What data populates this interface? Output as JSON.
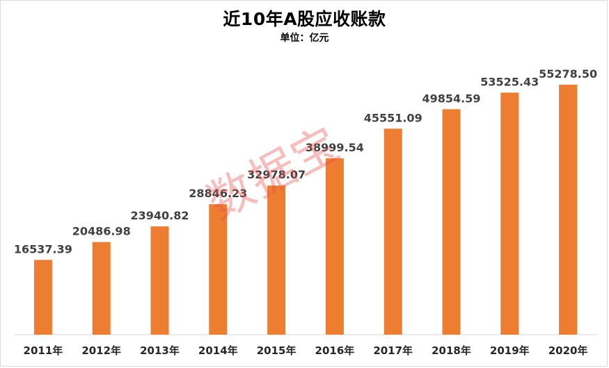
{
  "chart_data": {
    "type": "bar",
    "title": "近10年A股应收账款",
    "subtitle": "单位：亿元",
    "categories": [
      "2011年",
      "2012年",
      "2013年",
      "2014年",
      "2015年",
      "2016年",
      "2017年",
      "2018年",
      "2019年",
      "2020年"
    ],
    "values": [
      16537.39,
      20486.98,
      23940.82,
      28846.23,
      32978.07,
      38999.54,
      45551.09,
      49854.59,
      53525.43,
      55278.5
    ],
    "value_labels": [
      "16537.39",
      "20486.98",
      "23940.82",
      "28846.23",
      "32978.07",
      "38999.54",
      "45551.09",
      "49854.59",
      "53525.43",
      "55278.50"
    ],
    "ylim": [
      0,
      60000
    ],
    "grid": false,
    "bar_color": "#ed7d31"
  },
  "watermark": "数据宝"
}
